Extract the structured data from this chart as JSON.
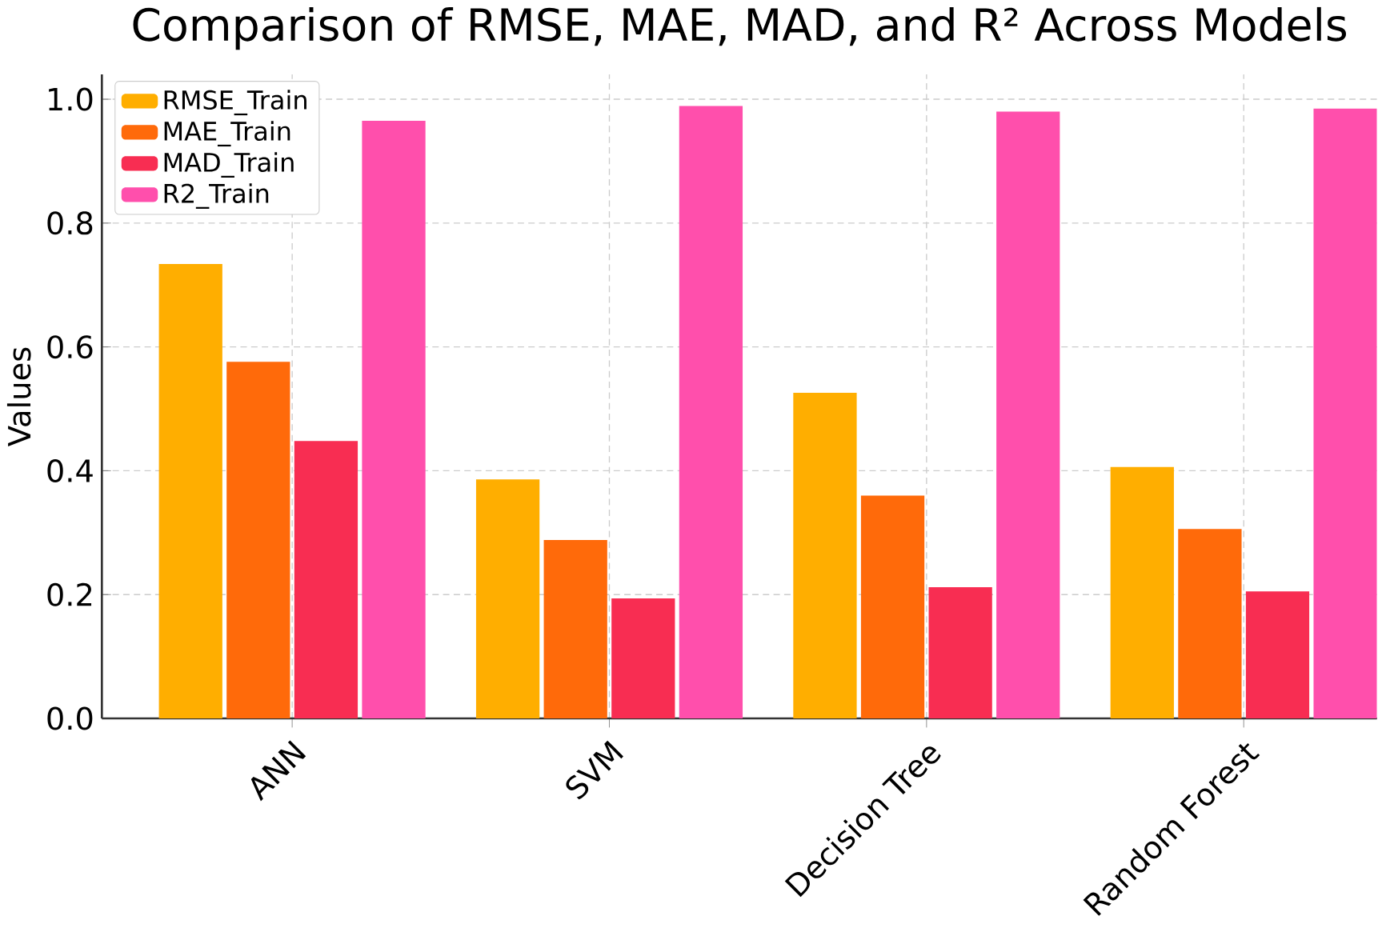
{
  "chart_data": {
    "type": "bar",
    "title": "Comparison of RMSE, MAE, MAD, and R² Across Models",
    "ylabel": "Values",
    "categories": [
      "ANN",
      "SVM",
      "Decision Tree",
      "Random Forest"
    ],
    "series": [
      {
        "name": "RMSE_Train",
        "color": "#ffae00",
        "values": [
          0.734,
          0.386,
          0.526,
          0.406
        ]
      },
      {
        "name": "MAE_Train",
        "color": "#ff6a0a",
        "values": [
          0.576,
          0.288,
          0.36,
          0.306
        ]
      },
      {
        "name": "MAD_Train",
        "color": "#f82d52",
        "values": [
          0.448,
          0.194,
          0.212,
          0.205
        ]
      },
      {
        "name": "R2_Train",
        "color": "#ff4fac",
        "values": [
          0.965,
          0.989,
          0.98,
          0.985
        ]
      }
    ],
    "ylim": [
      0,
      1.04
    ],
    "yticks": [
      {
        "value": 0,
        "label": "0.0"
      },
      0.2,
      0.4,
      0.6,
      0.8,
      {
        "value": 1,
        "label": "1.0"
      }
    ],
    "grid": true,
    "legend": "top left"
  }
}
